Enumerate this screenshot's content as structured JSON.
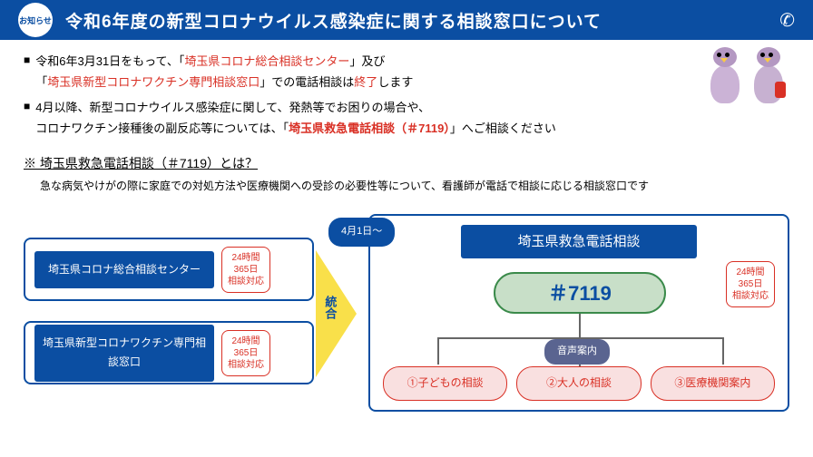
{
  "header": {
    "badge": "お知らせ",
    "title": "令和6年度の新型コロナウイルス感染症に関する相談窓口について"
  },
  "bullets": [
    {
      "parts": [
        {
          "t": "令和6年3月31日をもって、「"
        },
        {
          "t": "埼玉県コロナ総合相談センター",
          "cls": "red"
        },
        {
          "t": "」及び"
        }
      ],
      "parts2": [
        {
          "t": "「"
        },
        {
          "t": "埼玉県新型コロナワクチン専門相談窓口",
          "cls": "red"
        },
        {
          "t": "」での電話相談は"
        },
        {
          "t": "終了",
          "cls": "red"
        },
        {
          "t": "します"
        }
      ]
    },
    {
      "parts": [
        {
          "t": "4月以降、新型コロナウイルス感染症に関して、発熱等でお困りの場合や、"
        }
      ],
      "parts2": [
        {
          "t": "コロナワクチン接種後の副反応等については、「"
        },
        {
          "t": "埼玉県救急電話相談（＃7119）",
          "cls": "red-bold"
        },
        {
          "t": "」へご相談ください"
        }
      ]
    }
  ],
  "note": {
    "title": "※ 埼玉県救急電話相談（＃7119）とは？",
    "desc": "急な病気やけがの際に家庭での対処方法や医療機関への受診の必要性等について、看護師が電話で相談に応じる相談窓口です"
  },
  "left_boxes": [
    {
      "label": "埼玉県コロナ総合相談センター",
      "badge": [
        "24時間",
        "365日",
        "相談対応"
      ]
    },
    {
      "label": "埼玉県新型コロナワクチン専門相談窓口",
      "badge": [
        "24時間",
        "365日",
        "相談対応"
      ]
    }
  ],
  "arrow_text": "統合",
  "right": {
    "date": "4月1日～",
    "title": "埼玉県救急電話相談",
    "number": "＃7119",
    "badge": [
      "24時間",
      "365日",
      "相談対応"
    ],
    "voice": "音声案内",
    "options": [
      "①子どもの相談",
      "②大人の相談",
      "③医療機関案内"
    ]
  },
  "colors": {
    "primary": "#0b4ea2",
    "accent_red": "#d93025",
    "arrow_yellow": "#f9e04a",
    "number_bg": "#c8dfc8",
    "number_border": "#3a8a4a",
    "voice_bg": "#5a6490",
    "option_bg": "#f9e0e0"
  }
}
